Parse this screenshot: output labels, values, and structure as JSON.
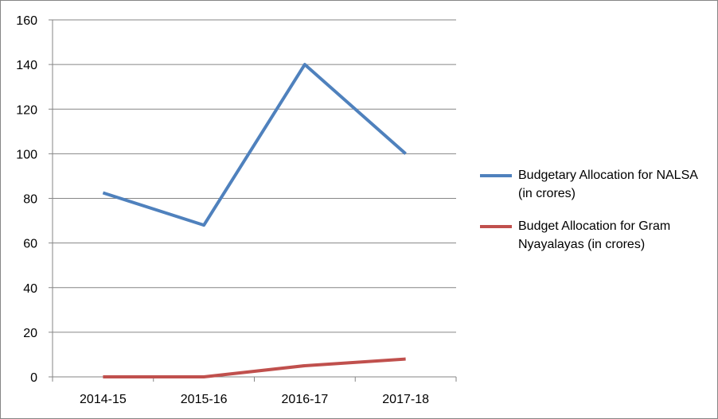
{
  "chart_data": {
    "type": "line",
    "categories": [
      "2014-15",
      "2015-16",
      "2016-17",
      "2017-18"
    ],
    "series": [
      {
        "name": "Budgetary Allocation for NALSA (in crores)",
        "values": [
          82.5,
          68,
          140,
          100
        ],
        "color": "#4f81bd"
      },
      {
        "name": "Budget Allocation for Gram Nyayalayas (in crores)",
        "values": [
          0,
          0,
          5,
          8
        ],
        "color": "#c0504d"
      }
    ],
    "y_ticks": [
      0,
      20,
      40,
      60,
      80,
      100,
      120,
      140,
      160
    ],
    "ylim": [
      0,
      160
    ],
    "grid": true,
    "legend_position": "right"
  }
}
